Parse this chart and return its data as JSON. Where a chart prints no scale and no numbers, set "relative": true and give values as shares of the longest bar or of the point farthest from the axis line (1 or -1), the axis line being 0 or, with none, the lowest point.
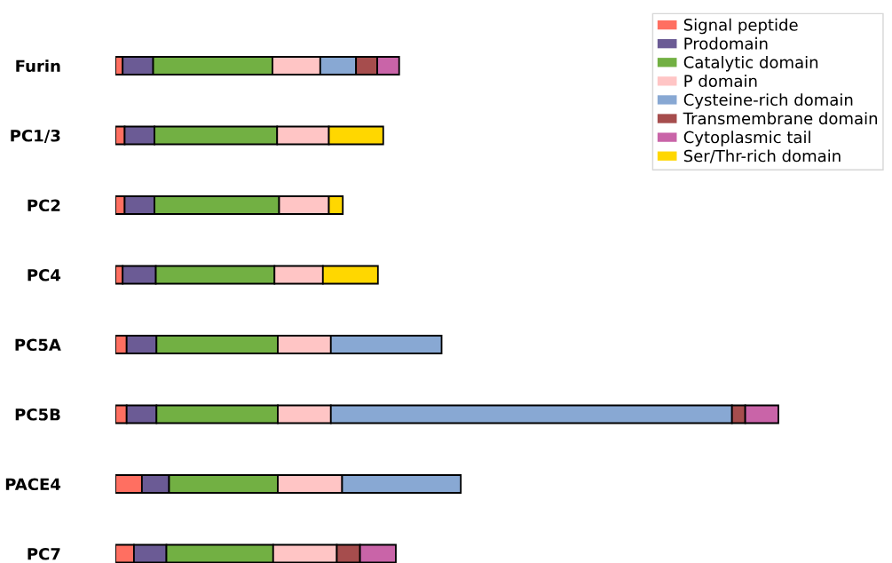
{
  "chart_data": {
    "type": "bar",
    "orientation": "horizontal",
    "stacked": true,
    "relative": true,
    "legend": "top right",
    "categories": [
      "Furin",
      "PC1/3",
      "PC2",
      "PC4",
      "PC5A",
      "PC5B",
      "PACE4",
      "PC7"
    ],
    "series": [
      {
        "name": "Signal peptide",
        "color": "#ff6f61",
        "values": [
          0.011,
          0.014,
          0.014,
          0.011,
          0.017,
          0.017,
          0.04,
          0.028
        ]
      },
      {
        "name": "Prodomain",
        "color": "#6b5b95",
        "values": [
          0.046,
          0.045,
          0.045,
          0.05,
          0.045,
          0.045,
          0.041,
          0.049
        ]
      },
      {
        "name": "Catalytic domain",
        "color": "#72b043",
        "values": [
          0.18,
          0.185,
          0.188,
          0.179,
          0.183,
          0.183,
          0.164,
          0.161
        ]
      },
      {
        "name": "P domain",
        "color": "#ffc5c5",
        "values": [
          0.072,
          0.078,
          0.075,
          0.073,
          0.08,
          0.08,
          0.097,
          0.096
        ]
      },
      {
        "name": "Cysteine-rich domain",
        "color": "#88a8d3",
        "values": [
          0.054,
          null,
          null,
          null,
          0.167,
          0.605,
          0.179,
          null
        ]
      },
      {
        "name": "Transmembrane domain",
        "color": "#a64d4d",
        "values": [
          0.032,
          null,
          null,
          null,
          null,
          0.02,
          null,
          0.035
        ]
      },
      {
        "name": "Cytoplasmic tail",
        "color": "#c964a8",
        "values": [
          0.033,
          null,
          null,
          null,
          null,
          0.05,
          null,
          0.054
        ]
      },
      {
        "name": "Ser/Thr-rich domain",
        "color": "#ffd700",
        "values": [
          null,
          0.082,
          0.021,
          0.083,
          null,
          null,
          null,
          null
        ]
      }
    ]
  }
}
